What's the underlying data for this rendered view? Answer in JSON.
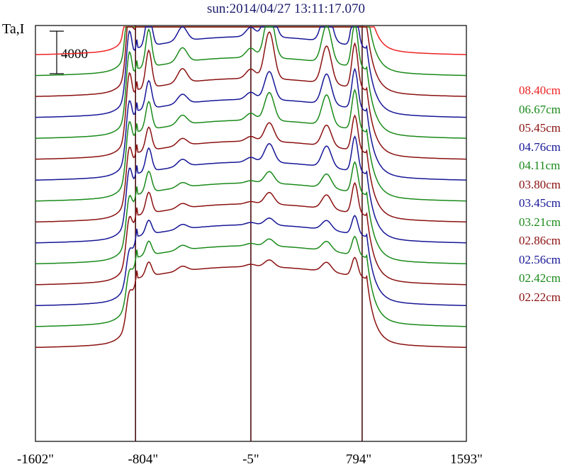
{
  "title": "sun:2014/04/27 13:11:17.070",
  "ylabel": "Ta,I",
  "scale_bar_label": "4000",
  "colors": {
    "red": "#ee2222",
    "green": "#1a8a1a",
    "maroon": "#8b1010",
    "navy": "#161696",
    "vline": "#4a1010"
  },
  "chart_data": {
    "type": "line",
    "title": "sun:2014/04/27 13:11:17.070",
    "ylabel": "Ta,I",
    "x_ticks": [
      "-1602\"",
      "-804\"",
      "-5\"",
      "794\"",
      "1593\""
    ],
    "x_tick_values": [
      -1602,
      -804,
      -5,
      794,
      1593
    ],
    "xlim": [
      -1602,
      1593
    ],
    "vertical_lines": [
      -860,
      -5,
      820
    ],
    "scale_bar_value": 4000,
    "series": [
      {
        "name": "08.40cm",
        "color": "red",
        "baseline": 13.2,
        "profile": "a"
      },
      {
        "name": "06.67cm",
        "color": "green",
        "baseline": 12.0,
        "profile": "b"
      },
      {
        "name": "05.45cm",
        "color": "maroon",
        "baseline": 10.8,
        "profile": "c"
      },
      {
        "name": "04.76cm",
        "color": "navy",
        "baseline": 9.6,
        "profile": "c"
      },
      {
        "name": "04.11cm",
        "color": "green",
        "baseline": 8.4,
        "profile": "c"
      },
      {
        "name": "03.80cm",
        "color": "maroon",
        "baseline": 7.2,
        "profile": "c"
      },
      {
        "name": "03.45cm",
        "color": "navy",
        "baseline": 6.0,
        "profile": "d"
      },
      {
        "name": "03.21cm",
        "color": "green",
        "baseline": 4.8,
        "profile": "d"
      },
      {
        "name": "02.86cm",
        "color": "maroon",
        "baseline": 3.6,
        "profile": "e"
      },
      {
        "name": "02.56cm",
        "color": "navy",
        "baseline": 2.4,
        "profile": "e"
      },
      {
        "name": "02.42cm",
        "color": "green",
        "baseline": 1.2,
        "profile": "f"
      },
      {
        "name": "02.22cm",
        "color": "maroon",
        "baseline": 0.0,
        "profile": "f"
      },
      {
        "name": "",
        "color": "navy",
        "baseline": -1.2,
        "profile": "g"
      },
      {
        "name": "",
        "color": "green",
        "baseline": -2.4,
        "profile": "g"
      },
      {
        "name": "",
        "color": "maroon",
        "baseline": -3.6,
        "profile": "g"
      }
    ]
  }
}
